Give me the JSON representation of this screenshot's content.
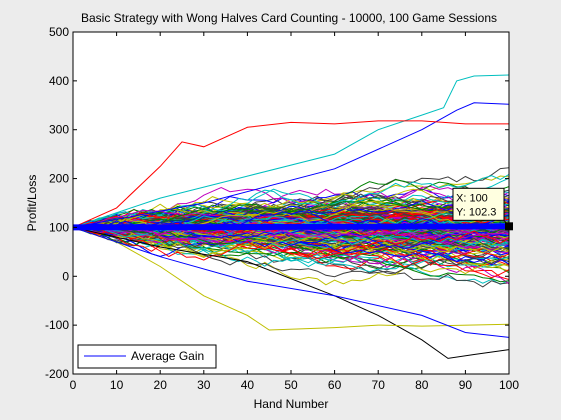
{
  "chart_data": {
    "type": "line",
    "title": "Basic Strategy with Wong Halves Card Counting - 10000, 100 Game Sessions",
    "xlabel": "Hand Number",
    "ylabel": "Profit/Loss",
    "xlim": [
      0,
      100
    ],
    "ylim": [
      -200,
      500
    ],
    "xticks": [
      "0",
      "10",
      "20",
      "30",
      "40",
      "50",
      "60",
      "70",
      "80",
      "90",
      "100"
    ],
    "yticks": [
      "-200",
      "-100",
      "0",
      "100",
      "200",
      "300",
      "400",
      "500"
    ],
    "grid": false,
    "legend": {
      "position": "bottom-left",
      "entries": [
        "Average Gain"
      ]
    },
    "series": [
      {
        "name": "Average Gain",
        "color": "#0000ff",
        "x": [
          0,
          10,
          20,
          30,
          40,
          50,
          60,
          70,
          80,
          90,
          100
        ],
        "values": [
          100,
          100.2,
          100.4,
          100.6,
          100.8,
          101.0,
          101.3,
          101.5,
          101.8,
          102.0,
          102.3
        ]
      }
    ],
    "sessions": {
      "count": 10000,
      "start_value": 100,
      "envelope_upper": [
        [
          0,
          100
        ],
        [
          10,
          135
        ],
        [
          20,
          175
        ],
        [
          25,
          205
        ],
        [
          30,
          230
        ],
        [
          40,
          250
        ],
        [
          50,
          262
        ],
        [
          60,
          272
        ],
        [
          70,
          282
        ],
        [
          80,
          290
        ],
        [
          90,
          298
        ],
        [
          100,
          305
        ]
      ],
      "envelope_lower": [
        [
          0,
          100
        ],
        [
          10,
          68
        ],
        [
          20,
          30
        ],
        [
          30,
          -5
        ],
        [
          40,
          -45
        ],
        [
          50,
          -65
        ],
        [
          60,
          -75
        ],
        [
          70,
          -85
        ],
        [
          80,
          -95
        ],
        [
          90,
          -100
        ],
        [
          100,
          -105
        ]
      ],
      "extreme_paths": [
        {
          "color": "#00bfbf",
          "points": [
            [
              0,
              100
            ],
            [
              20,
              160
            ],
            [
              40,
              205
            ],
            [
              60,
              250
            ],
            [
              70,
              300
            ],
            [
              80,
              330
            ],
            [
              85,
              345
            ],
            [
              88,
              400
            ],
            [
              92,
              410
            ],
            [
              100,
              412
            ]
          ]
        },
        {
          "color": "#0000ff",
          "points": [
            [
              0,
              100
            ],
            [
              30,
              150
            ],
            [
              60,
              220
            ],
            [
              80,
              300
            ],
            [
              88,
              340
            ],
            [
              92,
              355
            ],
            [
              100,
              352
            ]
          ]
        },
        {
          "color": "#ff0000",
          "points": [
            [
              0,
              100
            ],
            [
              10,
              140
            ],
            [
              20,
              225
            ],
            [
              25,
              275
            ],
            [
              30,
              265
            ],
            [
              40,
              305
            ],
            [
              50,
              315
            ],
            [
              60,
              312
            ],
            [
              70,
              318
            ],
            [
              80,
              318
            ],
            [
              90,
              312
            ],
            [
              100,
              312
            ]
          ]
        },
        {
          "color": "#000000",
          "points": [
            [
              0,
              100
            ],
            [
              20,
              60
            ],
            [
              40,
              30
            ],
            [
              60,
              -40
            ],
            [
              70,
              -80
            ],
            [
              80,
              -130
            ],
            [
              86,
              -168
            ],
            [
              92,
              -160
            ],
            [
              100,
              -150
            ]
          ]
        },
        {
          "color": "#bfbf00",
          "points": [
            [
              0,
              100
            ],
            [
              10,
              70
            ],
            [
              20,
              20
            ],
            [
              30,
              -40
            ],
            [
              40,
              -80
            ],
            [
              45,
              -110
            ],
            [
              60,
              -105
            ],
            [
              70,
              -100
            ],
            [
              80,
              -102
            ],
            [
              100,
              -98
            ]
          ]
        },
        {
          "color": "#0000ff",
          "points": [
            [
              0,
              100
            ],
            [
              20,
              40
            ],
            [
              40,
              -10
            ],
            [
              60,
              -40
            ],
            [
              80,
              -80
            ],
            [
              90,
              -115
            ],
            [
              100,
              -125
            ]
          ]
        }
      ]
    },
    "datatip": {
      "x_text": "X: 100",
      "y_text": "Y: 102.3",
      "x": 100,
      "y": 102.3
    }
  },
  "palette": [
    "#0000ff",
    "#008000",
    "#ff0000",
    "#00bfbf",
    "#bf00bf",
    "#bfbf00",
    "#404040"
  ]
}
